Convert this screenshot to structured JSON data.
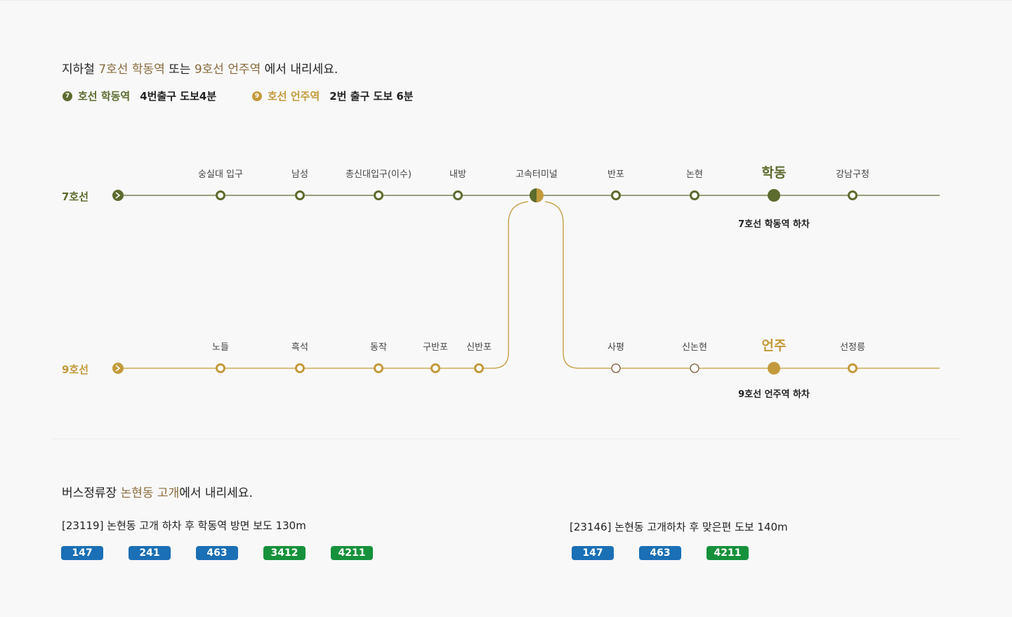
{
  "subway_section": {
    "title_parts": [
      "지하철 ",
      "7호선 학동역",
      " 또는 ",
      "9호선 언주역",
      " 에서 내리세요."
    ],
    "legend": [
      {
        "badge": "7",
        "name": "호선 학동역",
        "desc": "4번출구 도보4분",
        "color": "#5c6b2e"
      },
      {
        "badge": "9",
        "name": "호선 언주역",
        "desc": "2번 출구 도보 6분",
        "color": "#c39a3b"
      }
    ]
  },
  "map": {
    "colors": {
      "line7": "#5c6b2e",
      "line9": "#c39a3b"
    },
    "transfer_station": "고속터미널",
    "line7": {
      "name": "7호선",
      "stations_before": [
        "숭실대 입구",
        "남성",
        "총신대입구(이수)",
        "내방"
      ],
      "stations_after": [
        "반포",
        "논현",
        "학동",
        "강남구청"
      ],
      "destination": "학동",
      "destination_note": "7호선 학동역 하차"
    },
    "line9": {
      "name": "9호선",
      "stations_before": [
        "노들",
        "흑석",
        "동작",
        "구반포",
        "신반포"
      ],
      "stations_after": [
        "사평",
        "신논현",
        "언주",
        "선정릉"
      ],
      "destination": "언주",
      "destination_note": "9호선 언주역 하차"
    }
  },
  "bus_section": {
    "title_parts": [
      "버스정류장 ",
      "논현동 고개",
      "에서 내리세요."
    ],
    "stops": [
      {
        "label": "[23119] 논현동 고개 하차 후 학동역 방면 보도 130m",
        "buses": [
          {
            "number": "147",
            "color": "#1a6fb5"
          },
          {
            "number": "241",
            "color": "#1a6fb5"
          },
          {
            "number": "463",
            "color": "#1a6fb5"
          },
          {
            "number": "3412",
            "color": "#16913b"
          },
          {
            "number": "4211",
            "color": "#16913b"
          }
        ]
      },
      {
        "label": "[23146] 논현동 고개하차 후 맞은편 도보 140m",
        "buses": [
          {
            "number": "147",
            "color": "#1a6fb5"
          },
          {
            "number": "463",
            "color": "#1a6fb5"
          },
          {
            "number": "4211",
            "color": "#16913b"
          }
        ]
      }
    ]
  }
}
